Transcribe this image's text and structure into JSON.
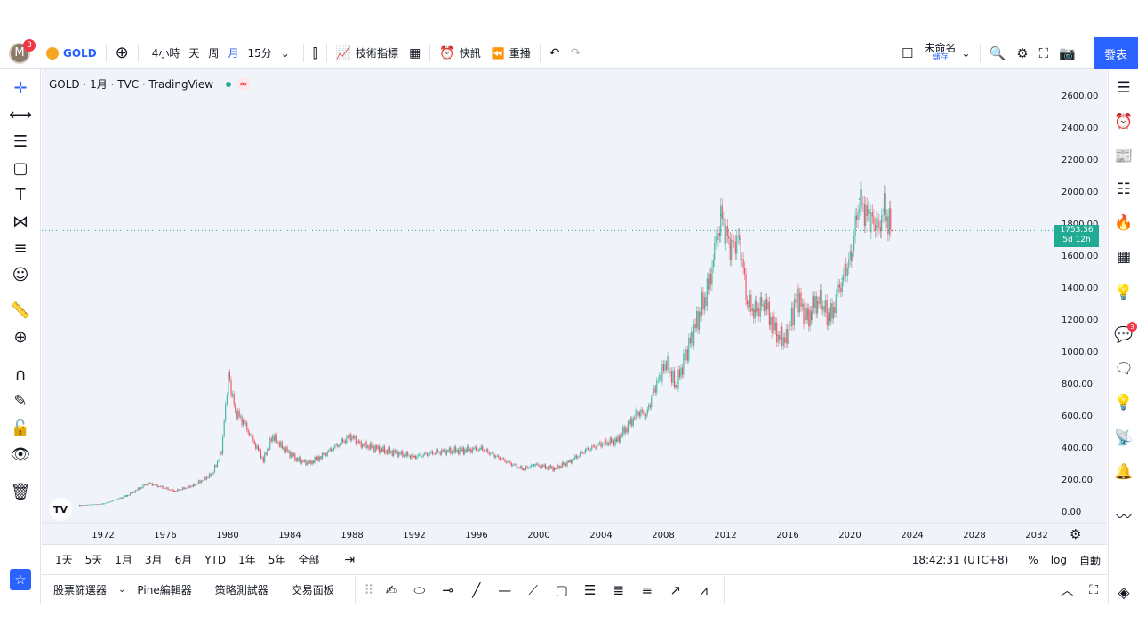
{
  "toolbar": {
    "avatar_letter": "M",
    "notification_count": "3",
    "symbol": "GOLD",
    "intervals": [
      "4小時",
      "天",
      "周",
      "月",
      "15分"
    ],
    "active_interval": "月",
    "indicators_label": "技術指標",
    "alert_label": "快訊",
    "replay_label": "重播",
    "layout_name": "未命名",
    "save_label": "儲存",
    "publish_label": "發表"
  },
  "legend": {
    "title": "GOLD · 1月 · TVC · TradingView",
    "wave": "≈"
  },
  "price_tag": {
    "price": "1753.36",
    "countdown": "5d 12h"
  },
  "bottom_tabs": [
    "股票篩選器",
    "Pine編輯器",
    "策略測試器",
    "交易面板"
  ],
  "timeframes": [
    "1天",
    "5天",
    "1月",
    "3月",
    "6月",
    "YTD",
    "1年",
    "5年",
    "全部"
  ],
  "status": {
    "clock": "18:42:31 (UTC+8)",
    "percent": "%",
    "log": "log",
    "auto": "自動"
  },
  "chart_data": {
    "type": "line",
    "symbol": "GOLD",
    "current_price": 1753.36,
    "y_ticks": [
      "2600.00",
      "2400.00",
      "2200.00",
      "2000.00",
      "1800.00",
      "1600.00",
      "1400.00",
      "1200.00",
      "1000.00",
      "800.00",
      "600.00",
      "400.00",
      "200.00",
      "0.00"
    ],
    "x_ticks": [
      "1972",
      "1976",
      "1980",
      "1984",
      "1988",
      "1992",
      "1996",
      "2000",
      "2004",
      "2008",
      "2012",
      "2016",
      "2020",
      "2024",
      "2028",
      "2032"
    ],
    "ylim": [
      0,
      2600
    ],
    "x": [
      1970.5,
      1972,
      1973.5,
      1974.9,
      1976.6,
      1977.8,
      1979,
      1979.6,
      1980.05,
      1980.5,
      1981,
      1982.3,
      1982.9,
      1983.5,
      1984.5,
      1985.2,
      1986,
      1987.9,
      1988.5,
      1990,
      1992,
      1993.5,
      1995,
      1996.3,
      1997.5,
      1999,
      1999.7,
      2001,
      2002,
      2003,
      2004,
      2005,
      2006.4,
      2006.9,
      2007.5,
      2008.2,
      2008.8,
      2009.9,
      2010.9,
      2011.7,
      2012.3,
      2012.9,
      2013.4,
      2013.9,
      2014.5,
      2015.3,
      2015.9,
      2016.6,
      2017.2,
      2018,
      2018.7,
      2019.5,
      2020.1,
      2020.6,
      2021.1,
      2021.8,
      2022.2,
      2022.7
    ],
    "values": [
      36,
      45,
      95,
      175,
      125,
      160,
      230,
      370,
      850,
      620,
      560,
      320,
      470,
      400,
      320,
      300,
      340,
      470,
      420,
      380,
      340,
      370,
      380,
      390,
      330,
      260,
      290,
      265,
      310,
      380,
      420,
      440,
      620,
      600,
      780,
      930,
      780,
      1110,
      1400,
      1850,
      1650,
      1700,
      1300,
      1250,
      1300,
      1100,
      1070,
      1350,
      1200,
      1330,
      1200,
      1450,
      1600,
      1950,
      1850,
      1780,
      1880,
      1753
    ]
  }
}
